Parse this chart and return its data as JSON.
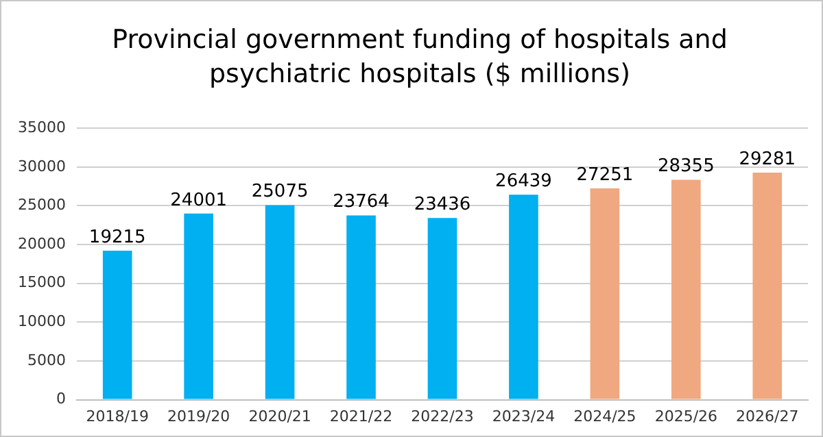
{
  "chart_data": {
    "type": "bar",
    "title": "Provincial government funding of hospitals and psychiatric hospitals ($ millions)",
    "categories": [
      "2018/19",
      "2019/20",
      "2020/21",
      "2021/22",
      "2022/23",
      "2023/24",
      "2024/25",
      "2025/26",
      "2026/27"
    ],
    "values": [
      19215,
      24001,
      25075,
      23764,
      23436,
      26439,
      27251,
      28355,
      29281
    ],
    "colors": [
      "#00b0f0",
      "#00b0f0",
      "#00b0f0",
      "#00b0f0",
      "#00b0f0",
      "#00b0f0",
      "#f0a880",
      "#f0a880",
      "#f0a880"
    ],
    "ylim": [
      0,
      35000
    ],
    "yticks": [
      0,
      5000,
      10000,
      15000,
      20000,
      25000,
      30000,
      35000
    ],
    "grid": "y",
    "data_labels": true,
    "legend": false
  }
}
